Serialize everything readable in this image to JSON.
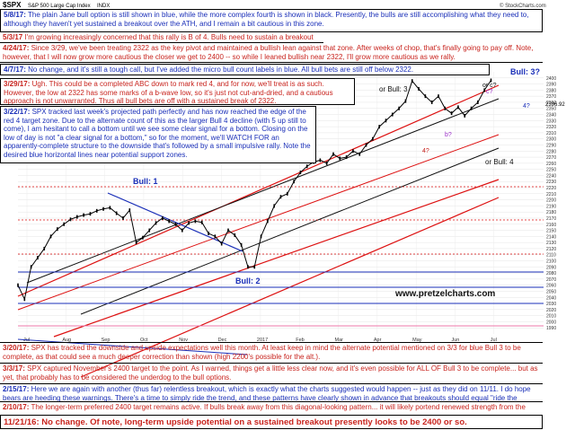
{
  "header": {
    "symbol": "$SPX",
    "name": "S&P 500 Large Cap Index",
    "exchange": "INDX",
    "source": "© StockCharts.com",
    "last_value": "2396.92"
  },
  "notes": [
    {
      "id": "n58",
      "date": "5/8/17:",
      "text": "The plain Jane bull option is still shown in blue, while the more complex fourth is shown in black.  Presently, the bulls are still accomplishing what they need to, although they haven't yet sustained a breakout over the ATH, and I remain a bit cautious in this zone."
    },
    {
      "id": "n53",
      "date": "5/3/17",
      "text": "I'm growing increasingly concerned that this rally is B of 4.  Bulls need to sustain a breakout over the ATH."
    },
    {
      "id": "n424",
      "date": "4/24/17:",
      "text": "Since 3/29, we've been treating 2322 as the key pivot and maintained a bullish lean against that zone.  After weeks of chop, that's finally going to pay off.  Note, however, that I will now grow more cautious the closer we get to 2400 -- so while I leaned bullish near 2322, I'll grow more cautious as we rally."
    },
    {
      "id": "n47",
      "date": "4/7/17:",
      "text": "No change, and it's still a tough call, but I've added the micro bull count labels in blue.  All bull bets are still off below 2322."
    },
    {
      "id": "n329",
      "date": "3/29/17:",
      "text": "Ugh.  This could be a completed ABC down to mark red 4, and for now, we'll treat is as such. However, the low at 2322 has some marks of a b-wave low, so it's just not cut-and-dried, and a cautious approach is not unwarranted.  Thus all bull bets are off with a sustained break of 2322."
    },
    {
      "id": "n322",
      "date": "3/22/17:",
      "text": "SPX tracked last week's projected path perfectly and has now reached the edge of the red 4 target zone.  Due to the alternate count of this as the larger Bull 4 decline (with 5 up still to come), I am hesitant to call a bottom until we see some clear signal for a bottom. Closing on the low of day is not \"a clear signal for a bottom,\" so for the moment, we'll WATCH FOR an apparently-complete structure to the downside that's followed by a small impulsive rally.  Note the desired blue horizontal lines near potential support zones."
    },
    {
      "id": "n320",
      "date": "3/20/17:",
      "text": "SPX has tracked the downside and upside expectations well this month.  At least keep in mind the alternate potential mentioned on 3/3 for blue Bull 3 to be complete, as that could see a much deeper correction than shown (high 2200's possible for the alt.)."
    },
    {
      "id": "n33",
      "date": "3/3/17:",
      "text": "SPX captured November's 2400 target to the point.  As I warned, things get a little less clear now, and it's even possible for ALL OF Bull 3 to be complete... but as yet, that probably has to be considered the underdog to the bull options."
    },
    {
      "id": "n215",
      "date": "2/15/17:",
      "text": "Here we are again with another (thus far) relentless breakout, which is exactly what the charts suggested would happen -- just as they did on 11/11.  I do hope bears are heeding these warnings.  There's a time to simply ride the trend, and these patterns have clearly shown in advance that breakouts should equal \"ride the trend.\""
    },
    {
      "id": "n210",
      "date": "2/10/17:",
      "text": "The longer-term preferred 2400 target remains active.  If bulls break away from this diagonal-looking pattern... it will likely portend renewed strength from the rally"
    },
    {
      "id": "n1121",
      "date": "11/21/16:",
      "text": "No change.  Of note, long-term upside potential on a sustained breakout presently looks to be 2400 or so."
    }
  ],
  "labels": {
    "bull1": "Bull: 1",
    "bull2": "Bull: 2",
    "bull3q": "Bull: 3?",
    "orbull3": "or Bull: 3",
    "orbull4": "or Bull: 4",
    "orc": "or c?",
    "b": "b?",
    "c": "c?",
    "red4": "4?",
    "blue4": "4?",
    "website": "www.pretzelcharts.com"
  },
  "chart_data": {
    "type": "line",
    "title": "$SPX S&P 500 Large Cap Index INDX",
    "x_ticks": [
      "Jul",
      "Aug",
      "Sep",
      "Oct",
      "Nov",
      "Dec",
      "2017",
      "Feb",
      "Mar",
      "Apr",
      "May",
      "Jun",
      "Jul"
    ],
    "y_ticks": [
      "2400",
      "2390",
      "2380",
      "2370",
      "2360",
      "2350",
      "2340",
      "2330",
      "2320",
      "2310",
      "2300",
      "2290",
      "2280",
      "2270",
      "2260",
      "2250",
      "2240",
      "2230",
      "2220",
      "2210",
      "2200",
      "2190",
      "2180",
      "2170",
      "2160",
      "2150",
      "2140",
      "2130",
      "2120",
      "2110",
      "2100",
      "2090",
      "2080",
      "2070",
      "2060",
      "2050",
      "2040",
      "2030",
      "2020",
      "2010",
      "2000",
      "1990"
    ],
    "ylim": [
      1980,
      2410
    ],
    "x": [
      0,
      3,
      6,
      9,
      12,
      15,
      18,
      21,
      24,
      27,
      30,
      33,
      36,
      39,
      42,
      45,
      48,
      51,
      54,
      57,
      60,
      63,
      66,
      69,
      72,
      75,
      78,
      81,
      84,
      87,
      90,
      93,
      96,
      99,
      102,
      105,
      108,
      111,
      114,
      117,
      120,
      123,
      126,
      129,
      132,
      135,
      138,
      141,
      144,
      147,
      150,
      153,
      156,
      159,
      162,
      165,
      168,
      171,
      174,
      177,
      180,
      183,
      186,
      189,
      192,
      195,
      198,
      201,
      204,
      207,
      210,
      213,
      216
    ],
    "values": [
      2060,
      2037,
      2090,
      2105,
      2120,
      2140,
      2152,
      2160,
      2168,
      2172,
      2175,
      2177,
      2182,
      2185,
      2187,
      2178,
      2170,
      2183,
      2130,
      2138,
      2150,
      2162,
      2170,
      2165,
      2160,
      2150,
      2162,
      2165,
      2163,
      2145,
      2140,
      2128,
      2150,
      2142,
      2126,
      2090,
      2090,
      2140,
      2165,
      2190,
      2205,
      2210,
      2230,
      2245,
      2255,
      2262,
      2265,
      2260,
      2275,
      2268,
      2270,
      2280,
      2275,
      2290,
      2300,
      2320,
      2330,
      2340,
      2350,
      2362,
      2395,
      2382,
      2370,
      2360,
      2370,
      2350,
      2342,
      2352,
      2338,
      2350,
      2360,
      2380,
      2396
    ]
  }
}
